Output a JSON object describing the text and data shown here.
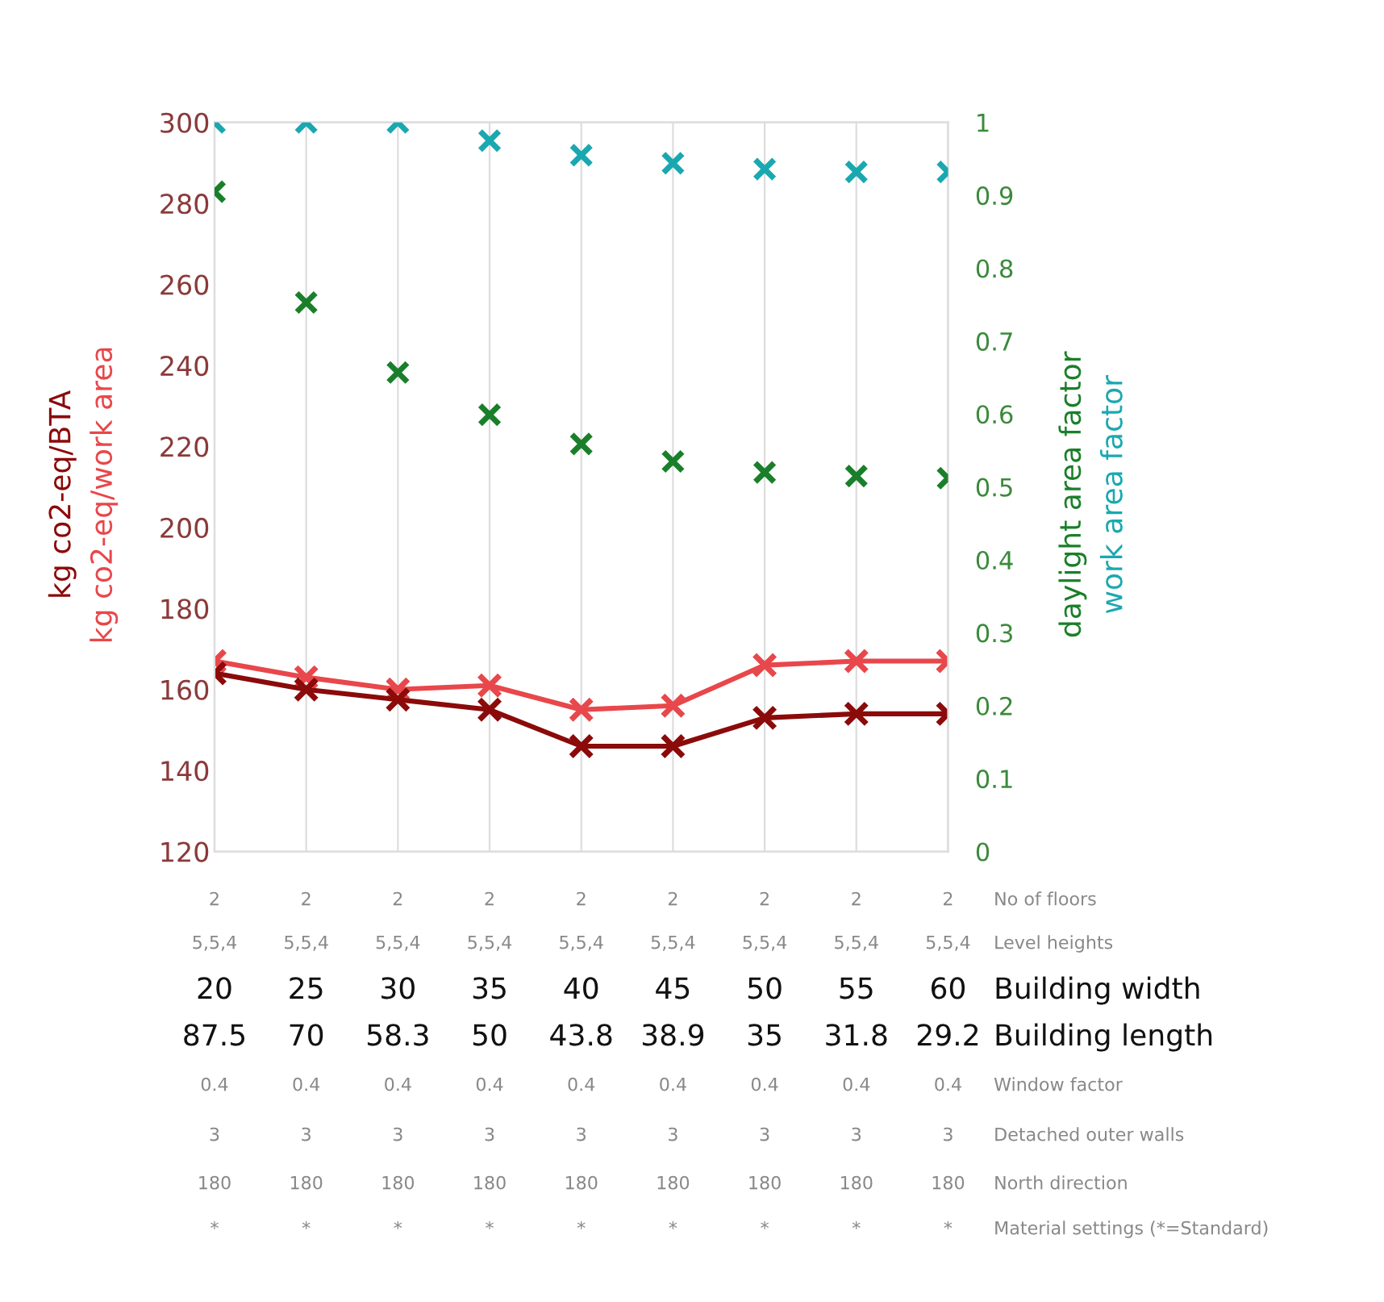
{
  "chart_data": {
    "type": "line",
    "categories": [
      "2\n5,5,4\n20\n87.5\n0.4\n3\n180\n*",
      "2\n5,5,4\n25\n70\n0.4\n3\n180\n*",
      "2\n5,5,4\n30\n58.3\n0.4\n3\n180\n*",
      "2\n5,5,4\n35\n50\n0.4\n3\n180\n*",
      "2\n5,5,4\n40\n43.8\n0.4\n3\n180\n*",
      "2\n5,5,4\n45\n38.9\n0.4\n3\n180\n*",
      "2\n5,5,4\n50\n35\n0.4\n3\n180\n*",
      "2\n5,5,4\n55\n31.8\n0.4\n3\n180\n*",
      "2\n5,5,4\n60\n29.2\n0.4\n3\n180\n*"
    ],
    "series": [
      {
        "name": "kg co2-eq/work area",
        "color": "#e8474b",
        "values": [
          167,
          163,
          160,
          161,
          155,
          156,
          166,
          167,
          167
        ]
      },
      {
        "name": "kg co2-eq/BTA",
        "color": "#8b0a0a",
        "values": [
          164,
          160,
          157.5,
          155,
          146,
          146,
          153,
          154,
          154
        ]
      },
      {
        "name": "daylight area factor",
        "type": "scatter",
        "axis": "y2",
        "color": "#1a7f2a",
        "values": [
          0.905,
          0.753,
          0.657,
          0.599,
          0.559,
          0.535,
          0.52,
          0.515,
          0.512
        ]
      },
      {
        "name": "work area factor",
        "type": "scatter",
        "axis": "y2",
        "color": "#1aa8b0",
        "values": [
          1,
          1,
          1,
          0.975,
          0.955,
          0.944,
          0.936,
          0.932,
          0.932
        ]
      }
    ],
    "ylim": [
      120,
      300
    ],
    "yticks": [
      120,
      140,
      160,
      180,
      200,
      220,
      240,
      260,
      280,
      300
    ],
    "y2lim": [
      0,
      1
    ],
    "y2ticks": [
      0,
      0.1,
      0.2,
      0.3,
      0.4,
      0.5,
      0.6,
      0.7,
      0.8,
      0.9,
      1
    ],
    "annotations": [
      "No of floors",
      "Level heights",
      "Building width",
      "Building length",
      "Window factor",
      "Detached outer walls",
      "North direction",
      "Material settings (*=Standard)"
    ],
    "marker": "cross",
    "grid": "x",
    "legend": false
  }
}
